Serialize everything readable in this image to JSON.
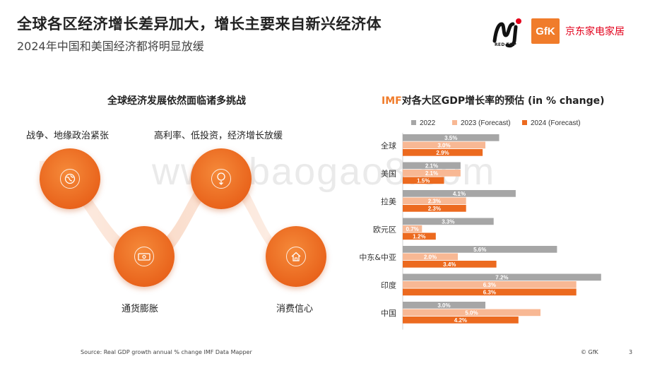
{
  "header": {
    "title": "全球各区经济增长差异加大，增长主要来自新兴经济体",
    "subtitle": "2024年中国和美国经济都将明显放缓"
  },
  "logos": {
    "redtop": "RED-TOP",
    "gfk": "GfK",
    "jd": "京东家电家居"
  },
  "watermark": "www.baogao8.com",
  "left_panel": {
    "title": "全球经济发展依然面临诸多挑战",
    "challenges": [
      {
        "label": "战争、地缘政治紧张",
        "icon": "globe-icon"
      },
      {
        "label": "通货膨胀",
        "icon": "money-icon"
      },
      {
        "label": "高利率、低投资，经济增长放缓",
        "icon": "coin-down-icon"
      },
      {
        "label": "消费信心",
        "icon": "house-icon"
      }
    ]
  },
  "chart_title_prefix": "IMF",
  "chart_title_rest": "对各大区GDP增长率的预估 (in % change)",
  "chart_data": {
    "type": "bar",
    "orientation": "horizontal",
    "categories": [
      "全球",
      "美国",
      "拉美",
      "欧元区",
      "中东&中亚",
      "印度",
      "中国"
    ],
    "series": [
      {
        "name": "2022",
        "color": "#a6a6a6",
        "values": [
          3.5,
          2.1,
          4.1,
          3.3,
          5.6,
          7.2,
          3.0
        ]
      },
      {
        "name": "2023 (Forecast)",
        "color": "#f8b894",
        "values": [
          3.0,
          2.1,
          2.3,
          0.7,
          2.0,
          6.3,
          5.0
        ]
      },
      {
        "name": "2024 (Forecast)",
        "color": "#ec6a1f",
        "values": [
          2.9,
          1.5,
          2.3,
          1.2,
          3.4,
          6.3,
          4.2
        ]
      }
    ],
    "labels": [
      [
        "3.5%",
        "2.1%",
        "4.1%",
        "3.3%",
        "5.6%",
        "7.2%",
        "3.0%"
      ],
      [
        "3.0%",
        "2.1%",
        "2.3%",
        "0.7%",
        "2.0%",
        "6.3%",
        "5.0%"
      ],
      [
        "2.9%",
        "1.5%",
        "2.3%",
        "1.2%",
        "3.4%",
        "6.3%",
        "4.2%"
      ]
    ],
    "legend_position": "top"
  },
  "footer": {
    "source": "Source: Real GDP growth annual % change IMF Data Mapper",
    "copyright": "© GfK",
    "page": "3"
  }
}
